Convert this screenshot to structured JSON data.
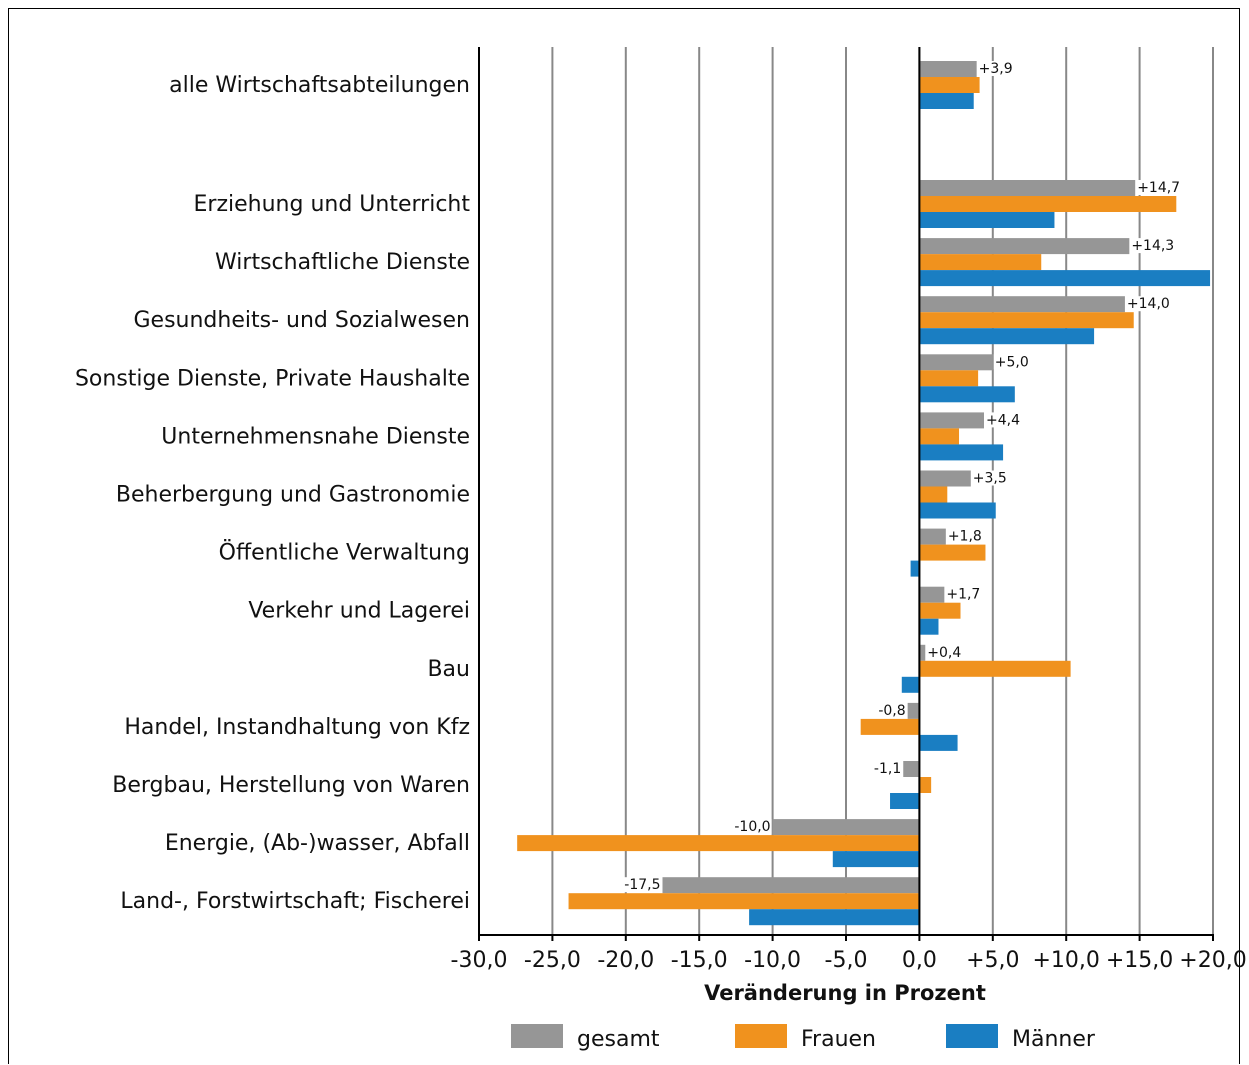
{
  "chart_data": {
    "type": "bar",
    "orientation": "horizontal",
    "categories": [
      "alle Wirtschaftsabteilungen",
      "Erziehung und Unterricht",
      "Wirtschaftliche Dienste",
      "Gesundheits- und Sozialwesen",
      "Sonstige Dienste, Private Haushalte",
      "Unternehmensnahe Dienste",
      "Beherbergung und Gastronomie",
      "Öffentliche Verwaltung",
      "Verkehr und Lagerei",
      "Bau",
      "Handel, Instandhaltung von Kfz",
      "Bergbau, Herstellung von Waren",
      "Energie, (Ab-)wasser, Abfall",
      "Land-, Forstwirtschaft; Fischerei"
    ],
    "series": [
      {
        "name": "gesamt",
        "color": "#969696",
        "values": [
          3.9,
          14.7,
          14.3,
          14.0,
          5.0,
          4.4,
          3.5,
          1.8,
          1.7,
          0.4,
          -0.8,
          -1.1,
          -10.0,
          -17.5
        ]
      },
      {
        "name": "Frauen",
        "color": "#f0921e",
        "values": [
          4.1,
          17.5,
          8.3,
          14.6,
          4.0,
          2.7,
          1.9,
          4.5,
          2.8,
          10.3,
          -4.0,
          0.8,
          -27.4,
          -23.9
        ]
      },
      {
        "name": "Männer",
        "color": "#1a7ec2",
        "values": [
          3.7,
          9.2,
          19.8,
          11.9,
          6.5,
          5.7,
          5.2,
          -0.6,
          1.3,
          -1.2,
          2.6,
          -2.0,
          -5.9,
          -11.6
        ]
      }
    ],
    "data_labels": [
      "+3,9",
      "+14,7",
      "+14,3",
      "+14,0",
      "+5,0",
      "+4,4",
      "+3,5",
      "+1,8",
      "+1,7",
      "+0,4",
      "-0,8",
      "-1,1",
      "-10,0",
      "-17,5"
    ],
    "xlim": [
      -30,
      20
    ],
    "x_ticks": [
      -30,
      -25,
      -20,
      -15,
      -10,
      -5,
      0,
      5,
      10,
      15,
      20
    ],
    "x_tick_labels": [
      "-30,0",
      "-25,0",
      "-20,0",
      "-15,0",
      "-10,0",
      "-5,0",
      "0,0",
      "+5,0",
      "+10,0",
      "+15,0",
      "+20,0"
    ],
    "xlabel": "Veränderung in Prozent",
    "ylabel": "",
    "title": "",
    "grid": "vertical",
    "legend": "bottom"
  }
}
